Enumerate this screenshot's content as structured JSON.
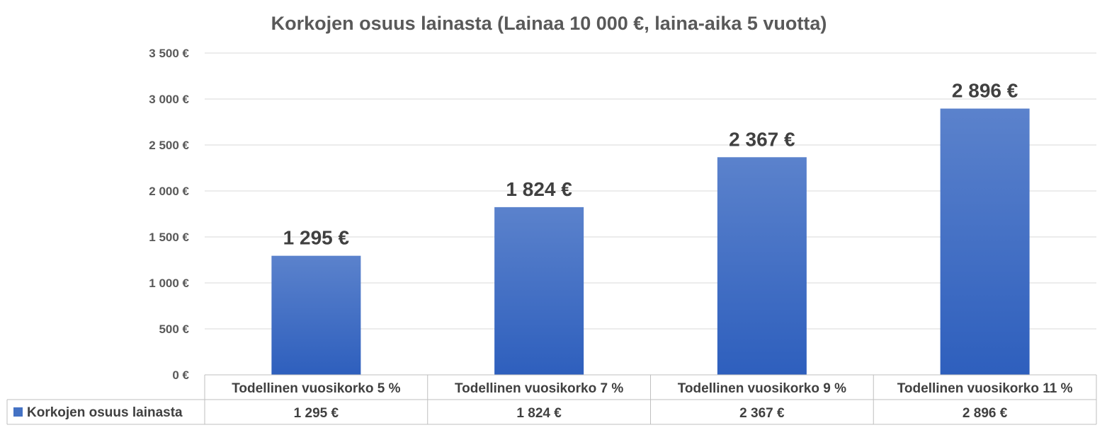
{
  "chart_data": {
    "type": "bar",
    "title": "Korkojen osuus lainasta (Lainaa 10 000 €, laina-aika 5 vuotta)",
    "categories": [
      "Todellinen vuosikorko 5 %",
      "Todellinen vuosikorko 7 %",
      "Todellinen vuosikorko 9 %",
      "Todellinen vuosikorko 11 %"
    ],
    "series": [
      {
        "name": "Korkojen osuus lainasta",
        "values": [
          1295,
          1824,
          2367,
          2896
        ],
        "labels": [
          "1 295 €",
          "1 824 €",
          "2 367 €",
          "2 896 €"
        ],
        "color": "#4472C4"
      }
    ],
    "ylim": [
      0,
      3500
    ],
    "yticks": [
      0,
      500,
      1000,
      1500,
      2000,
      2500,
      3000,
      3500
    ],
    "ytick_labels": [
      "0 €",
      "500 €",
      "1 000 €",
      "1 500 €",
      "2 000 €",
      "2 500 €",
      "3 000 €",
      "3 500 €"
    ],
    "xlabel": "",
    "ylabel": "",
    "grid": true,
    "data_table": true,
    "legend_position": "data-table"
  }
}
